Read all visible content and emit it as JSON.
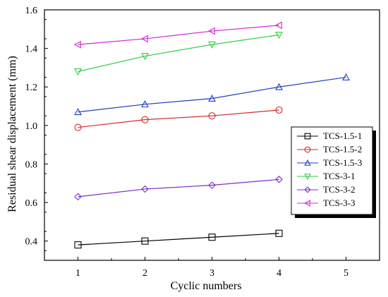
{
  "chart_data": {
    "type": "line",
    "xlabel": "Cyclic numbers",
    "ylabel": "Residual shear displacement (mm)",
    "xlim": [
      0.5,
      5.5
    ],
    "ylim": [
      0.3,
      1.6
    ],
    "xticks": [
      1,
      2,
      3,
      4,
      5
    ],
    "yticks": [
      0.4,
      0.6,
      0.8,
      1.0,
      1.2,
      1.4,
      1.6
    ],
    "legend_position": "right-lower",
    "series": [
      {
        "name": "TCS-1.5-1",
        "color": "#000000",
        "marker": "square",
        "x": [
          1,
          2,
          3,
          4
        ],
        "y": [
          0.38,
          0.4,
          0.42,
          0.44
        ]
      },
      {
        "name": "TCS-1.5-2",
        "color": "#d62728",
        "marker": "circle",
        "x": [
          1,
          2,
          3,
          4
        ],
        "y": [
          0.99,
          1.03,
          1.05,
          1.08
        ]
      },
      {
        "name": "TCS-1.5-3",
        "color": "#1f3fbf",
        "marker": "triangle-up",
        "x": [
          1,
          2,
          3,
          4,
          5
        ],
        "y": [
          1.07,
          1.11,
          1.14,
          1.2,
          1.25
        ]
      },
      {
        "name": "TCS-3-1",
        "color": "#2ecc40",
        "marker": "triangle-down",
        "x": [
          1,
          2,
          3,
          4
        ],
        "y": [
          1.28,
          1.36,
          1.42,
          1.47
        ]
      },
      {
        "name": "TCS-3-2",
        "color": "#7b2ec6",
        "marker": "diamond",
        "x": [
          1,
          2,
          3,
          4
        ],
        "y": [
          0.63,
          0.67,
          0.69,
          0.72
        ]
      },
      {
        "name": "TCS-3-3",
        "color": "#d12bd1",
        "marker": "triangle-left",
        "x": [
          1,
          2,
          3,
          4
        ],
        "y": [
          1.42,
          1.45,
          1.49,
          1.52
        ]
      }
    ]
  }
}
